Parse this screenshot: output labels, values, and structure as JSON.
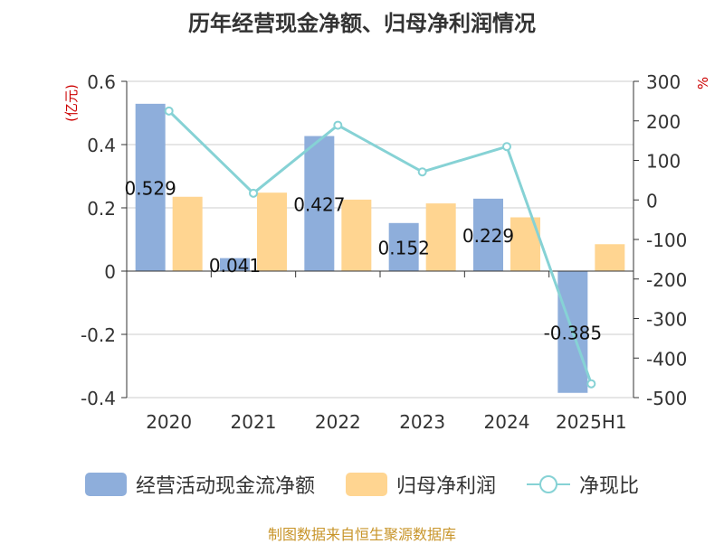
{
  "chart_data": {
    "type": "bar",
    "title": "历年经营现金净额、归母净利润情况",
    "categories": [
      "2020",
      "2021",
      "2022",
      "2023",
      "2024",
      "2025H1"
    ],
    "series": [
      {
        "name": "经营活动现金流净额",
        "type": "bar",
        "axis": "left",
        "color": "#8eaedb",
        "values": [
          0.529,
          0.041,
          0.427,
          0.152,
          0.229,
          -0.385
        ],
        "labels": [
          "0.529",
          "0.041",
          "0.427",
          "0.152",
          "0.229",
          "-0.385"
        ]
      },
      {
        "name": "归母净利润",
        "type": "bar",
        "axis": "left",
        "color": "#ffd591",
        "values": [
          0.235,
          0.248,
          0.226,
          0.214,
          0.17,
          0.085
        ]
      },
      {
        "name": "净现比",
        "type": "line",
        "axis": "right",
        "color": "#86d2d5",
        "values": [
          225,
          17,
          189,
          71,
          135,
          -465
        ]
      }
    ],
    "left_axis": {
      "unit": "(亿元)",
      "ylim": [
        -0.4,
        0.6
      ],
      "ticks": [
        0.6,
        0.4,
        0.2,
        0,
        -0.2,
        -0.4
      ],
      "tick_labels": [
        "0.6",
        "0.4",
        "0.2",
        "0",
        "-0.2",
        "-0.4"
      ]
    },
    "right_axis": {
      "unit": "%",
      "ylim": [
        -500,
        300
      ],
      "ticks": [
        300,
        200,
        100,
        0,
        -100,
        -200,
        -300,
        -400,
        -500
      ],
      "tick_labels": [
        "300",
        "200",
        "100",
        "0",
        "-100",
        "-200",
        "-300",
        "-400",
        "-500"
      ]
    },
    "grid": true,
    "legend_position": "bottom"
  },
  "legend": {
    "cash_flow": "经营活动现金流净额",
    "net_profit": "归母净利润",
    "cash_ratio": "净现比"
  },
  "footer": {
    "source": "制图数据来自恒生聚源数据库"
  },
  "colors": {
    "axis_unit": "#cc0000",
    "source": "#c8952a"
  }
}
